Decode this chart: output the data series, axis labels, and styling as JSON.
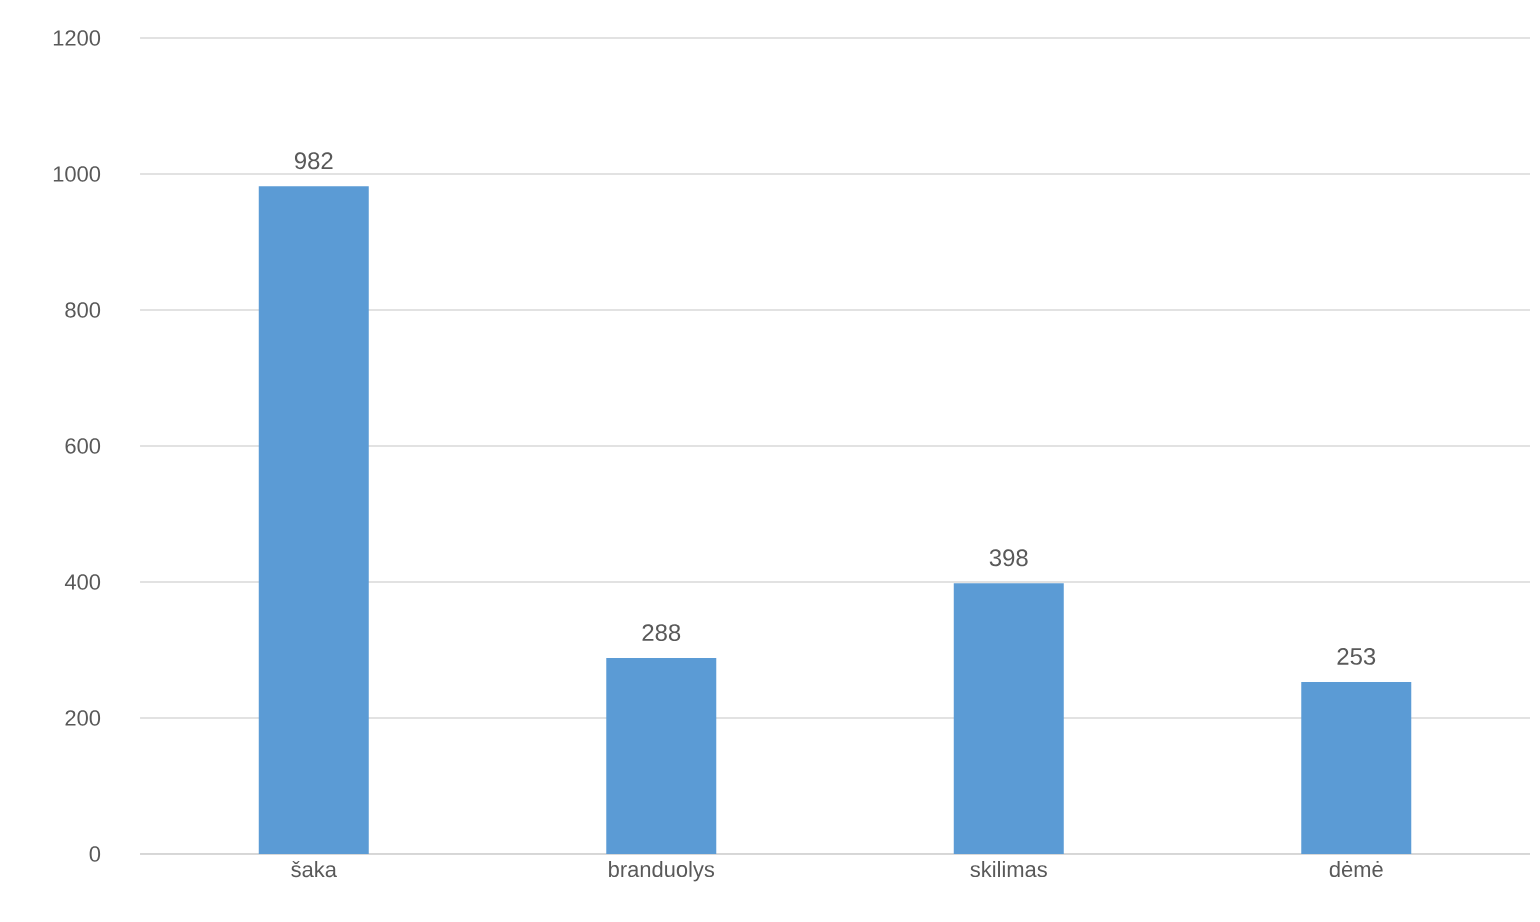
{
  "chart_data": {
    "type": "bar",
    "categories": [
      "šaka",
      "branduolys",
      "skilimas",
      "dėmė"
    ],
    "values": [
      982,
      288,
      398,
      253
    ],
    "color": "#5b9bd5",
    "ylim": [
      0,
      1200
    ],
    "yticks": [
      0,
      200,
      400,
      600,
      800,
      1000,
      1200
    ],
    "grid": "y",
    "data_labels": true
  }
}
